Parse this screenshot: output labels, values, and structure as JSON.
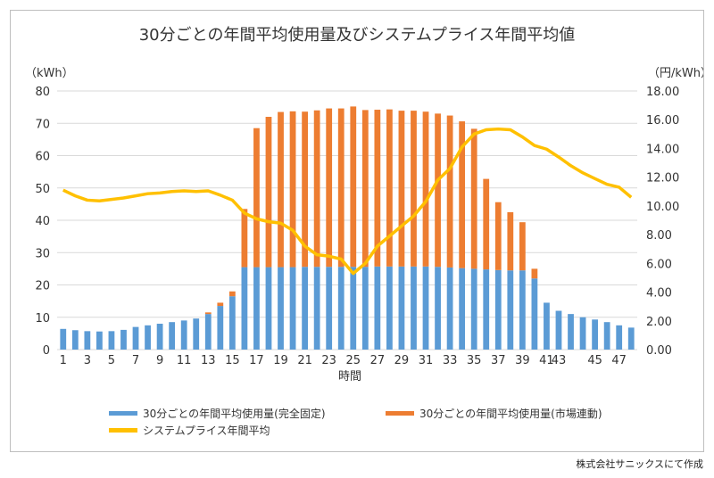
{
  "chart_data": {
    "type": "bar",
    "title": "30分ごとの年間平均使用量及びシステムプライス年間平均値",
    "y_left_unit": "（kWh）",
    "y_right_unit": "（円/kWh）",
    "xlabel": "時間",
    "ylim_left": [
      0,
      80
    ],
    "ylim_right": [
      0,
      18
    ],
    "left_ticks": [
      "0",
      "10",
      "20",
      "30",
      "40",
      "50",
      "60",
      "70",
      "80"
    ],
    "right_ticks": [
      "0.00",
      "2.00",
      "4.00",
      "6.00",
      "8.00",
      "10.00",
      "12.00",
      "14.00",
      "16.00",
      "18.00"
    ],
    "x_ticks": [
      "1",
      "3",
      "5",
      "7",
      "9",
      "11",
      "13",
      "15",
      "17",
      "19",
      "21",
      "23",
      "25",
      "27",
      "29",
      "31",
      "33",
      "35",
      "37",
      "39",
      "41",
      "43",
      "45",
      "47"
    ],
    "x": [
      1,
      2,
      3,
      4,
      5,
      6,
      7,
      8,
      9,
      10,
      11,
      12,
      13,
      14,
      15,
      16,
      17,
      18,
      19,
      20,
      21,
      22,
      23,
      24,
      25,
      26,
      27,
      28,
      29,
      30,
      31,
      32,
      33,
      34,
      35,
      36,
      37,
      38,
      39,
      40,
      41,
      43,
      42,
      44,
      45,
      46,
      47,
      48
    ],
    "grid": "horizontal",
    "legend_position": "bottom",
    "series": [
      {
        "name": "30分ごとの年間平均使用量(完全固定)",
        "kind": "bar",
        "axis": "left",
        "color": "#5b9bd5",
        "values": [
          6.4,
          6.0,
          5.7,
          5.6,
          5.7,
          6.1,
          7.0,
          7.5,
          8.0,
          8.5,
          9.0,
          9.6,
          11.0,
          13.5,
          16.5,
          25.5,
          25.5,
          25.5,
          25.5,
          25.5,
          25.6,
          25.6,
          25.6,
          25.6,
          25.6,
          25.6,
          25.7,
          25.7,
          25.7,
          25.7,
          25.7,
          25.6,
          25.4,
          25.2,
          25.0,
          24.8,
          24.6,
          24.5,
          24.5,
          22.0,
          14.5,
          12.0,
          11.0,
          10.0,
          9.3,
          8.5,
          7.5,
          6.8
        ]
      },
      {
        "name": "30分ごとの年間平均使用量(市場連動)",
        "kind": "bar",
        "axis": "left",
        "color": "#ed7d31",
        "values": [
          0,
          0,
          0,
          0,
          0,
          0,
          0,
          0,
          0,
          0,
          0,
          0,
          0.5,
          1.0,
          1.5,
          18.0,
          43.0,
          46.5,
          48.0,
          48.2,
          48.0,
          48.4,
          49.0,
          49.0,
          49.6,
          48.5,
          48.5,
          48.6,
          48.2,
          48.2,
          47.9,
          47.4,
          47.0,
          45.4,
          43.3,
          28.0,
          21.0,
          18.0,
          14.9,
          3.0,
          0,
          0,
          0,
          0,
          0,
          0,
          0,
          0
        ]
      },
      {
        "name": "システムプライス年間平均",
        "kind": "line",
        "axis": "right",
        "color": "#ffc000",
        "values": [
          11.1,
          10.7,
          10.4,
          10.35,
          10.45,
          10.55,
          10.7,
          10.85,
          10.9,
          11.0,
          11.05,
          11.0,
          11.05,
          10.75,
          10.4,
          9.5,
          9.1,
          8.9,
          8.8,
          8.3,
          7.2,
          6.6,
          6.5,
          6.3,
          5.3,
          6.0,
          7.2,
          7.9,
          8.6,
          9.3,
          10.3,
          11.8,
          12.6,
          14.1,
          15.0,
          15.3,
          15.35,
          15.3,
          14.8,
          14.2,
          13.95,
          13.4,
          12.8,
          12.3,
          11.9,
          11.5,
          11.3,
          10.6
        ]
      }
    ]
  },
  "credit": "株式会社サニックスにて作成"
}
